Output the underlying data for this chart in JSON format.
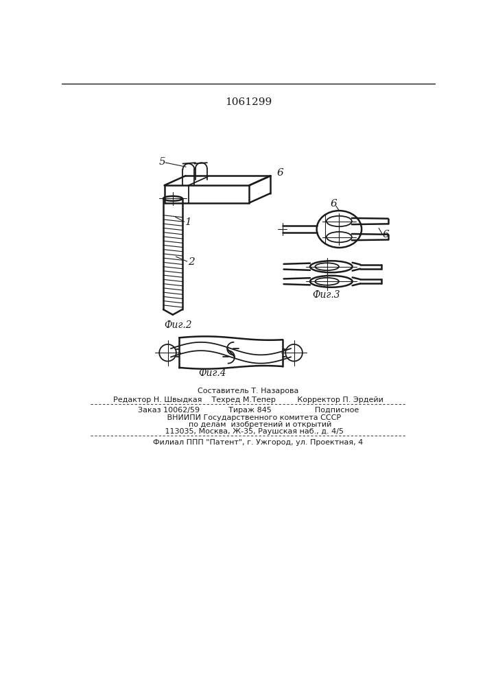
{
  "patent_number": "1061299",
  "bg_color": "#ffffff",
  "line_color": "#1a1a1a",
  "fig2_label": "Фиг.2",
  "fig3_label": "Фиг.3",
  "fig4_label": "Фиг.4",
  "footer_lines": [
    "Составитель Т. Назарова",
    "Редактор Н. Швыдкая    Техред М.Тепер         Корректор П. Эрдейи",
    "Заказ 10062/59            Тираж 845                  Подписное",
    "     ВНИИПИ Государственного комитета СССР",
    "          по делам  изобретений и открытий",
    "     113035, Москва, Ж-35, Раушская наб., д. 4/5",
    "        Филиал ППП \"Патент\", г. Ужгород, ул. Проектная, 4"
  ]
}
